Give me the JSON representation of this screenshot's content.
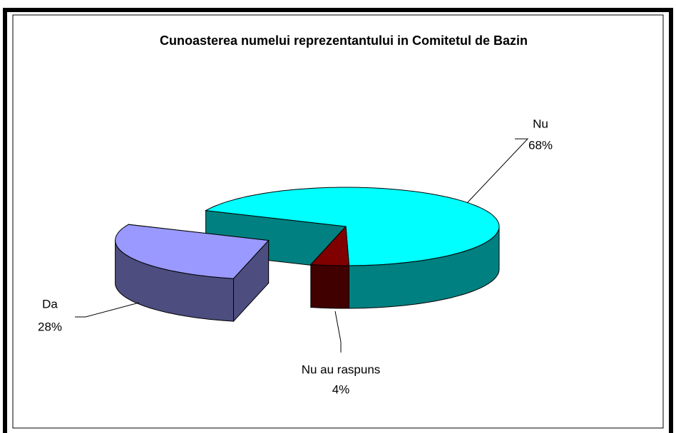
{
  "chart_data": {
    "type": "pie",
    "title": "Cunoasterea numelui reprezentantului in Comitetul de Bazin",
    "categories": [
      "Nu",
      "Nu au raspuns",
      "Da"
    ],
    "values": [
      68,
      4,
      28
    ],
    "value_labels": [
      "68%",
      "4%",
      "28%"
    ],
    "colors": [
      "#00ffff",
      "#800000",
      "#9999ff"
    ],
    "exploded": [
      false,
      false,
      true
    ]
  }
}
